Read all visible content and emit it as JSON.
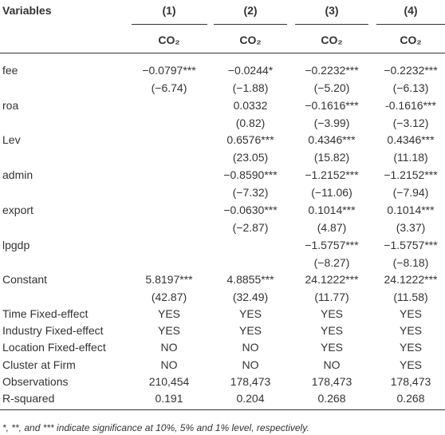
{
  "table": {
    "header": [
      "Variables",
      "(1)",
      "(2)",
      "(3)",
      "(4)"
    ],
    "dependent": [
      "CO₂",
      "CO₂",
      "CO₂",
      "CO₂"
    ],
    "coef_rows": [
      {
        "variable": "fee",
        "coef": [
          "−0.0797***",
          "−0.0244*",
          "−0.2232***",
          "−0.2232***"
        ],
        "t": [
          "(−6.74)",
          "(−1.88)",
          "(−5.20)",
          "(−6.13)"
        ]
      },
      {
        "variable": "roa",
        "coef": [
          null,
          "0.0332",
          "−0.1616***",
          "-0.1616***"
        ],
        "t": [
          null,
          "(0.82)",
          "(−3.99)",
          "(−3.12)"
        ]
      },
      {
        "variable": "Lev",
        "coef": [
          null,
          "0.6576***",
          "0.4346***",
          "0.4346***"
        ],
        "t": [
          null,
          "(23.05)",
          "(15.82)",
          "(11.18)"
        ]
      },
      {
        "variable": "admin",
        "coef": [
          null,
          "−0.8590***",
          "−1.2152***",
          "−1.2152***"
        ],
        "t": [
          null,
          "(−7.32)",
          "(−11.06)",
          "(−7.94)"
        ]
      },
      {
        "variable": "export",
        "coef": [
          null,
          "−0.0630***",
          "0.1014***",
          "0.1014***"
        ],
        "t": [
          null,
          "(−2.87)",
          "(4.87)",
          "(3.37)"
        ]
      },
      {
        "variable": "lpgdp",
        "coef": [
          null,
          null,
          "−1.5757***",
          "−1.5757***"
        ],
        "t": [
          null,
          null,
          "(−8.27)",
          "(−8.18)"
        ]
      },
      {
        "variable": "Constant",
        "coef": [
          "5.8197***",
          "4.8855***",
          "24.1222***",
          "24.1222***"
        ],
        "t": [
          "(42.87)",
          "(32.49)",
          "(11.77)",
          "(11.58)"
        ]
      }
    ],
    "stat_rows": [
      {
        "label": "Time Fixed-effect",
        "values": [
          "YES",
          "YES",
          "YES",
          "YES"
        ]
      },
      {
        "label": "Industry Fixed-effect",
        "values": [
          "YES",
          "YES",
          "YES",
          "YES"
        ]
      },
      {
        "label": "Location Fixed-effect",
        "values": [
          "NO",
          "NO",
          "YES",
          "YES"
        ]
      },
      {
        "label": "Cluster at Firm",
        "values": [
          "NO",
          "NO",
          "NO",
          "YES"
        ]
      },
      {
        "label": "Observations",
        "values": [
          "210,454",
          "178,473",
          "178,473",
          "178,473"
        ]
      },
      {
        "label": "R-squared",
        "values": [
          "0.191",
          "0.204",
          "0.268",
          "0.268"
        ]
      }
    ],
    "footnote": "*, **, and *** indicate significance at 10%, 5% and 1% level, respectively."
  }
}
